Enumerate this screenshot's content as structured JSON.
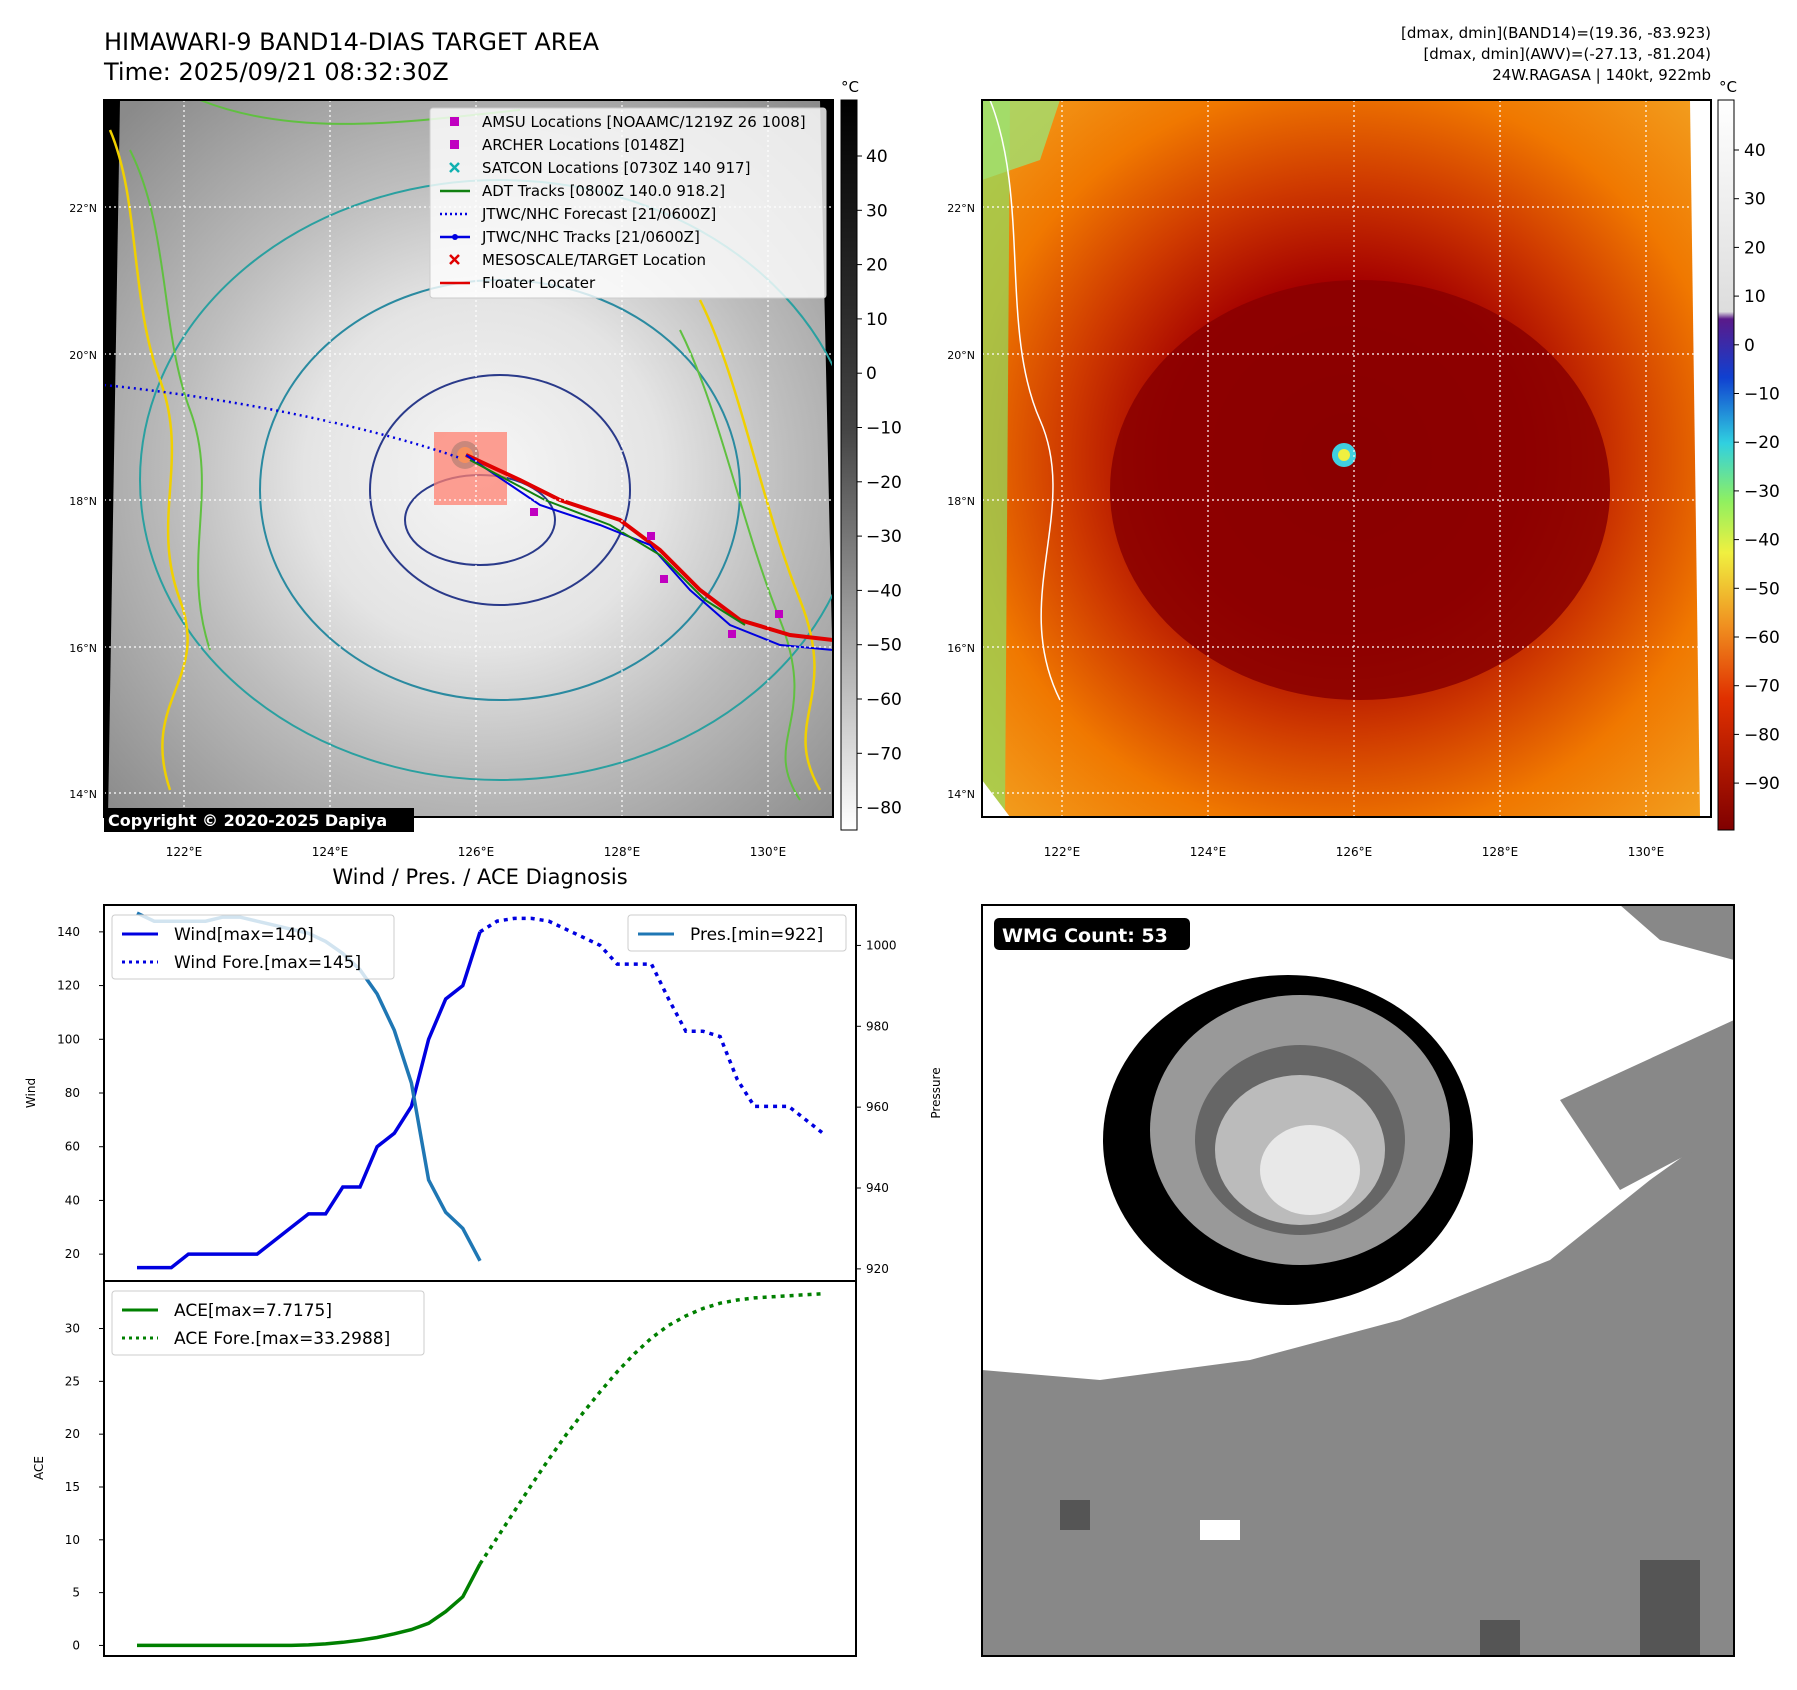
{
  "header": {
    "title": "HIMAWARI-9 BAND14-DIAS TARGET AREA",
    "time": "Time: 2025/09/21 08:32:30Z",
    "dmax_band14": "[dmax, dmin](BAND14)=(19.36, -83.923)",
    "dmax_awv": "[dmax, dmin](AWV)=(-27.13, -81.204)",
    "storm": "24W.RAGASA | 140kt, 922mb"
  },
  "map_axes": {
    "lat_labels": [
      "22°N",
      "20°N",
      "18°N",
      "16°N",
      "14°N"
    ],
    "lon_labels": [
      "122°E",
      "124°E",
      "126°E",
      "128°E",
      "130°E"
    ],
    "copyright": "Copyright © 2020-2025 Dapiya"
  },
  "colorbar_left": {
    "unit": "°C",
    "ticks": [
      "40",
      "30",
      "20",
      "10",
      "0",
      "−10",
      "−20",
      "−30",
      "−40",
      "−50",
      "−60",
      "−70",
      "−80"
    ]
  },
  "colorbar_right": {
    "unit": "°C",
    "ticks": [
      "40",
      "30",
      "20",
      "10",
      "0",
      "−10",
      "−20",
      "−30",
      "−40",
      "−50",
      "−60",
      "−70",
      "−80",
      "−90"
    ]
  },
  "map_legend": [
    {
      "label": "AMSU Locations [NOAAMC/1219Z 26 1008]",
      "marker": "square",
      "color": "#c000c0"
    },
    {
      "label": "ARCHER Locations [0148Z]",
      "marker": "square",
      "color": "#c000c0"
    },
    {
      "label": "SATCON Locations [0730Z 140 917]",
      "marker": "x",
      "color": "#10b0b0"
    },
    {
      "label": "ADT Tracks [0800Z 140.0 918.2]",
      "marker": "line",
      "color": "#108010"
    },
    {
      "label": "JTWC/NHC Forecast [21/0600Z]",
      "marker": "dotted",
      "color": "#0000e0"
    },
    {
      "label": "JTWC/NHC Tracks [21/0600Z]",
      "marker": "line-dot",
      "color": "#0000e0"
    },
    {
      "label": "MESOSCALE/TARGET Location",
      "marker": "x",
      "color": "#e00000"
    },
    {
      "label": "Floater Locater",
      "marker": "line",
      "color": "#e00000"
    }
  ],
  "diagnosis": {
    "title": "Wind / Pres. / ACE Diagnosis",
    "wind_ylabel": "Wind",
    "pres_ylabel": "Pressure",
    "ace_ylabel": "ACE",
    "legend_wind": "Wind[max=140]",
    "legend_wind_fore": "Wind Fore.[max=145]",
    "legend_pres": "Pres.[min=922]",
    "legend_ace": "ACE[max=7.7175]",
    "legend_ace_fore": "ACE Fore.[max=33.2988]"
  },
  "wmg": {
    "label": "WMG Count: 53"
  },
  "chart_data": [
    {
      "type": "line",
      "title": "",
      "ylabel": "Wind",
      "ylim": [
        10,
        150
      ],
      "yticks": [
        20,
        40,
        60,
        80,
        100,
        120,
        140
      ],
      "series": [
        {
          "name": "Wind[max=140]",
          "color": "#0000e0",
          "style": "solid",
          "x": [
            0,
            1,
            2,
            3,
            4,
            5,
            6,
            7,
            8,
            9,
            10,
            11,
            12,
            13,
            14,
            15,
            16,
            17,
            18,
            19,
            20
          ],
          "values": [
            15,
            15,
            15,
            20,
            20,
            20,
            20,
            20,
            25,
            30,
            35,
            35,
            45,
            45,
            60,
            65,
            75,
            100,
            115,
            120,
            140
          ]
        },
        {
          "name": "Wind Fore.[max=145]",
          "color": "#0000e0",
          "style": "dotted",
          "x": [
            20,
            21,
            22,
            23,
            24,
            25,
            26,
            27,
            28,
            29,
            30,
            31,
            32,
            33,
            34,
            35,
            36,
            37,
            38,
            39,
            40
          ],
          "values": [
            140,
            144,
            145,
            145,
            144,
            141,
            138,
            135,
            128,
            128,
            128,
            115,
            103,
            103,
            101,
            85,
            75,
            75,
            75,
            70,
            65
          ]
        }
      ]
    },
    {
      "type": "line",
      "title": "",
      "ylabel": "Pressure",
      "ylim": [
        917,
        1010
      ],
      "yticks": [
        920,
        940,
        960,
        980,
        1000
      ],
      "series": [
        {
          "name": "Pres.[min=922]",
          "color": "#1f77b4",
          "style": "solid",
          "x": [
            0,
            1,
            2,
            3,
            4,
            5,
            6,
            7,
            8,
            9,
            10,
            11,
            12,
            13,
            14,
            15,
            16,
            17,
            18,
            19,
            20
          ],
          "values": [
            1008,
            1006,
            1006,
            1006,
            1006,
            1007,
            1007,
            1006,
            1005,
            1004,
            1003,
            1001,
            998,
            994,
            988,
            979,
            966,
            942,
            934,
            930,
            922
          ]
        }
      ]
    },
    {
      "type": "line",
      "title": "",
      "ylabel": "ACE",
      "ylim": [
        -1,
        34.5
      ],
      "yticks": [
        0,
        5,
        10,
        15,
        20,
        25,
        30
      ],
      "series": [
        {
          "name": "ACE[max=7.7175]",
          "color": "#008000",
          "style": "solid",
          "x": [
            0,
            1,
            2,
            3,
            4,
            5,
            6,
            7,
            8,
            9,
            10,
            11,
            12,
            13,
            14,
            15,
            16,
            17,
            18,
            19,
            20
          ],
          "values": [
            0,
            0,
            0,
            0,
            0,
            0,
            0,
            0,
            0,
            0,
            0.05,
            0.15,
            0.3,
            0.5,
            0.75,
            1.1,
            1.5,
            2.1,
            3.2,
            4.6,
            7.7175
          ]
        },
        {
          "name": "ACE Fore.[max=33.2988]",
          "color": "#008000",
          "style": "dotted",
          "x": [
            20,
            21,
            22,
            23,
            24,
            25,
            26,
            27,
            28,
            29,
            30,
            31,
            32,
            33,
            34,
            35,
            36,
            37,
            38,
            39,
            40
          ],
          "values": [
            7.7175,
            10.2,
            12.7,
            15.2,
            17.6,
            19.9,
            22.0,
            24.0,
            25.9,
            27.6,
            29.1,
            30.3,
            31.2,
            31.9,
            32.4,
            32.7,
            32.9,
            33.0,
            33.1,
            33.2,
            33.2988
          ]
        }
      ]
    }
  ]
}
